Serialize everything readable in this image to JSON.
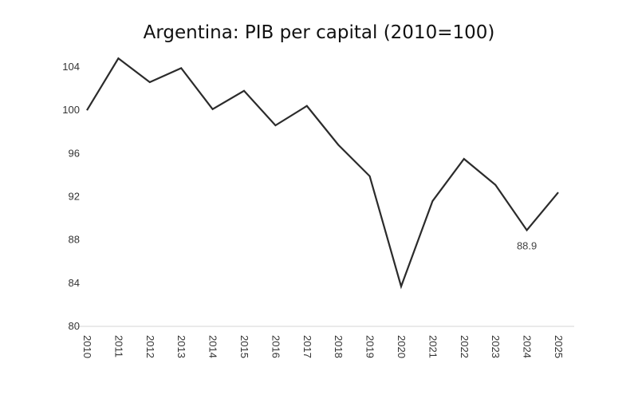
{
  "chart_data": {
    "type": "line",
    "title": "Argentina: PIB per capital (2010=100)",
    "xlabel": "",
    "ylabel": "",
    "x": [
      "2010",
      "2011",
      "2012",
      "2013",
      "2014",
      "2015",
      "2016",
      "2017",
      "2018",
      "2019",
      "2020",
      "2021",
      "2022",
      "2023",
      "2024",
      "2025"
    ],
    "series": [
      {
        "name": "PIB per capita",
        "values": [
          100.0,
          104.8,
          102.6,
          103.9,
          100.1,
          101.8,
          98.6,
          100.4,
          96.8,
          93.9,
          83.7,
          91.6,
          95.5,
          93.1,
          88.9,
          92.4
        ],
        "color": "#2b2b2b"
      }
    ],
    "ylim": [
      80,
      104
    ],
    "yticks": [
      "80",
      "84",
      "88",
      "92",
      "96",
      "100",
      "104"
    ],
    "grid": false,
    "annotations": [
      {
        "x": "2024",
        "text": "88.9"
      }
    ]
  }
}
